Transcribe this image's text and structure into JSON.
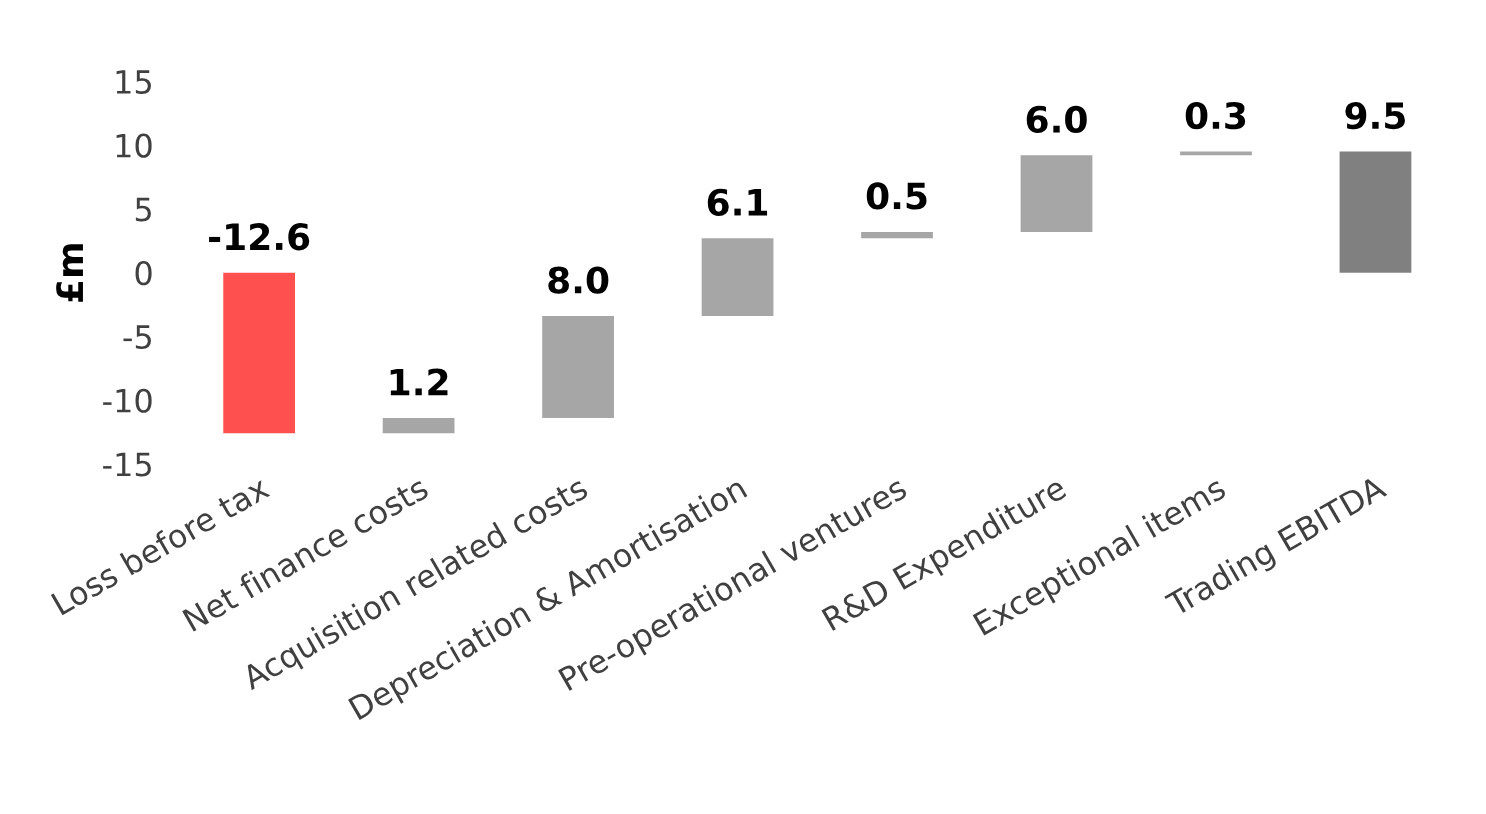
{
  "chart_data": {
    "type": "bar",
    "ylabel": "£m",
    "categories": [
      "Loss before tax",
      "Net finance costs",
      "Acquisition related costs",
      "Depreciation & Amortisation",
      "Pre-operational ventures",
      "R&D Expenditure",
      "Exceptional items",
      "Trading EBITDA"
    ],
    "base": [
      0,
      -12.6,
      -11.4,
      -3.4,
      2.7,
      3.2,
      9.2,
      0
    ],
    "values": [
      -12.6,
      1.2,
      8.0,
      6.1,
      0.5,
      6.0,
      0.3,
      9.5
    ],
    "value_labels": [
      "-12.6",
      "1.2",
      "8.0",
      "6.1",
      "0.5",
      "6.0",
      "0.3",
      "9.5"
    ],
    "colors": [
      "#ff5050",
      "#a6a6a6",
      "#a6a6a6",
      "#a6a6a6",
      "#a6a6a6",
      "#a6a6a6",
      "#a6a6a6",
      "#808080"
    ],
    "ylim": [
      -15,
      15
    ],
    "yticks": [
      -15,
      -10,
      -5,
      0,
      5,
      10,
      15
    ],
    "grid": false
  }
}
